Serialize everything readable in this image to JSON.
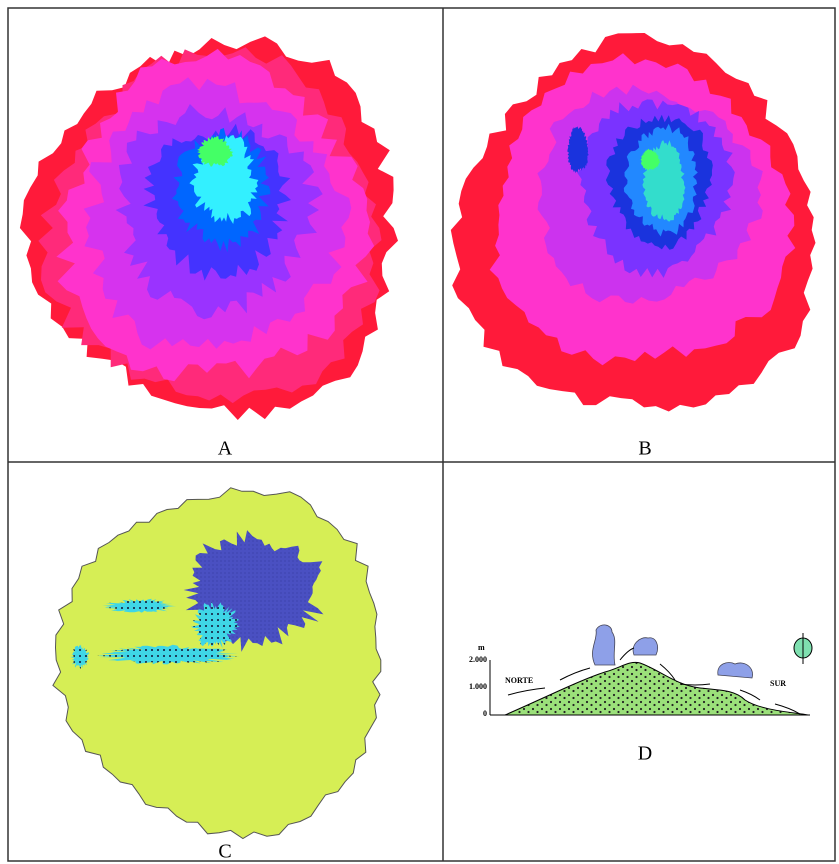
{
  "panels": [
    {
      "label": "A"
    },
    {
      "label": "B"
    },
    {
      "label": "C"
    },
    {
      "label": "D"
    }
  ],
  "profile": {
    "unit": "m",
    "ticks": [
      "2.000",
      "1.000",
      "0"
    ],
    "left_label": "NORTE",
    "right_label": "SUR"
  }
}
